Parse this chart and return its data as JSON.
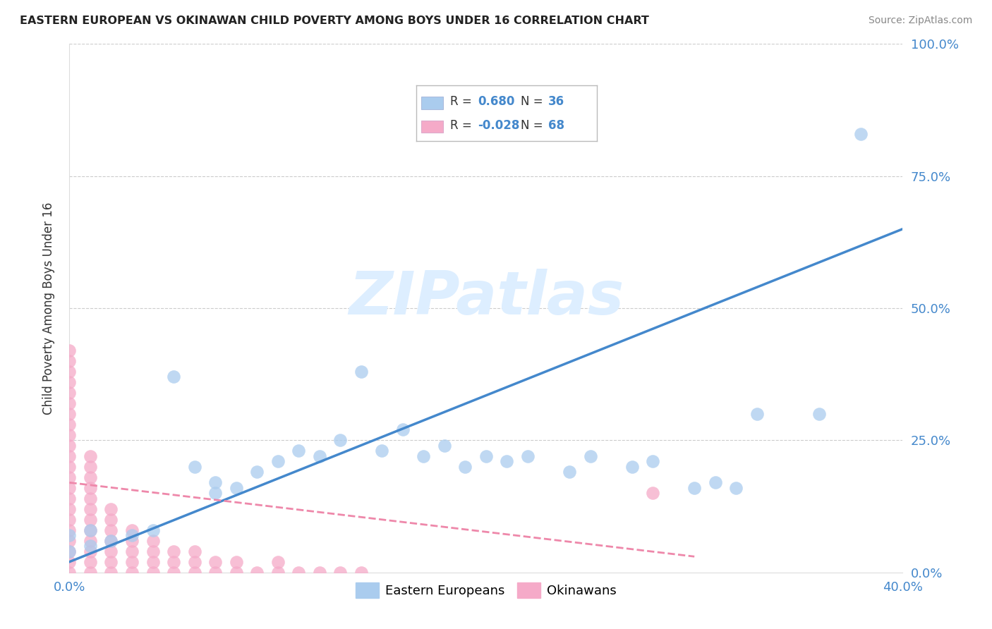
{
  "title": "EASTERN EUROPEAN VS OKINAWAN CHILD POVERTY AMONG BOYS UNDER 16 CORRELATION CHART",
  "source": "Source: ZipAtlas.com",
  "ylabel": "Child Poverty Among Boys Under 16",
  "xlim": [
    0.0,
    0.4
  ],
  "ylim": [
    0.0,
    1.0
  ],
  "bg_color": "#ffffff",
  "eastern_color": "#aaccee",
  "okinawan_color": "#f5aac8",
  "eastern_line_color": "#4488cc",
  "okinawan_line_color": "#ee88aa",
  "grid_color": "#cccccc",
  "tick_color": "#4488cc",
  "watermark_color": "#ddeeff",
  "r_eastern": "0.680",
  "n_eastern": "36",
  "r_okinawan": "-0.028",
  "n_okinawan": "68",
  "ee_x": [
    0.0,
    0.0,
    0.01,
    0.01,
    0.02,
    0.03,
    0.04,
    0.05,
    0.06,
    0.07,
    0.07,
    0.08,
    0.09,
    0.1,
    0.11,
    0.12,
    0.13,
    0.14,
    0.15,
    0.16,
    0.17,
    0.18,
    0.19,
    0.2,
    0.21,
    0.22,
    0.24,
    0.25,
    0.27,
    0.28,
    0.3,
    0.31,
    0.32,
    0.33,
    0.36,
    0.38
  ],
  "ee_y": [
    0.04,
    0.07,
    0.05,
    0.08,
    0.06,
    0.07,
    0.08,
    0.37,
    0.2,
    0.15,
    0.17,
    0.16,
    0.19,
    0.21,
    0.23,
    0.22,
    0.25,
    0.38,
    0.23,
    0.27,
    0.22,
    0.24,
    0.2,
    0.22,
    0.21,
    0.22,
    0.19,
    0.22,
    0.2,
    0.21,
    0.16,
    0.17,
    0.16,
    0.3,
    0.3,
    0.83
  ],
  "ok_x": [
    0.0,
    0.0,
    0.0,
    0.0,
    0.0,
    0.0,
    0.0,
    0.0,
    0.0,
    0.0,
    0.0,
    0.0,
    0.0,
    0.0,
    0.0,
    0.0,
    0.0,
    0.0,
    0.0,
    0.0,
    0.0,
    0.0,
    0.01,
    0.01,
    0.01,
    0.01,
    0.01,
    0.01,
    0.01,
    0.01,
    0.01,
    0.01,
    0.01,
    0.01,
    0.02,
    0.02,
    0.02,
    0.02,
    0.02,
    0.02,
    0.02,
    0.03,
    0.03,
    0.03,
    0.03,
    0.03,
    0.04,
    0.04,
    0.04,
    0.04,
    0.05,
    0.05,
    0.05,
    0.06,
    0.06,
    0.06,
    0.07,
    0.07,
    0.08,
    0.08,
    0.09,
    0.1,
    0.1,
    0.11,
    0.12,
    0.13,
    0.14,
    0.28
  ],
  "ok_y": [
    0.0,
    0.02,
    0.04,
    0.06,
    0.08,
    0.1,
    0.12,
    0.14,
    0.16,
    0.18,
    0.2,
    0.22,
    0.24,
    0.26,
    0.28,
    0.3,
    0.32,
    0.34,
    0.36,
    0.38,
    0.4,
    0.42,
    0.0,
    0.02,
    0.04,
    0.06,
    0.08,
    0.1,
    0.12,
    0.14,
    0.16,
    0.18,
    0.2,
    0.22,
    0.0,
    0.02,
    0.04,
    0.06,
    0.08,
    0.1,
    0.12,
    0.0,
    0.02,
    0.04,
    0.06,
    0.08,
    0.0,
    0.02,
    0.04,
    0.06,
    0.0,
    0.02,
    0.04,
    0.0,
    0.02,
    0.04,
    0.0,
    0.02,
    0.0,
    0.02,
    0.0,
    0.0,
    0.02,
    0.0,
    0.0,
    0.0,
    0.0,
    0.15
  ]
}
